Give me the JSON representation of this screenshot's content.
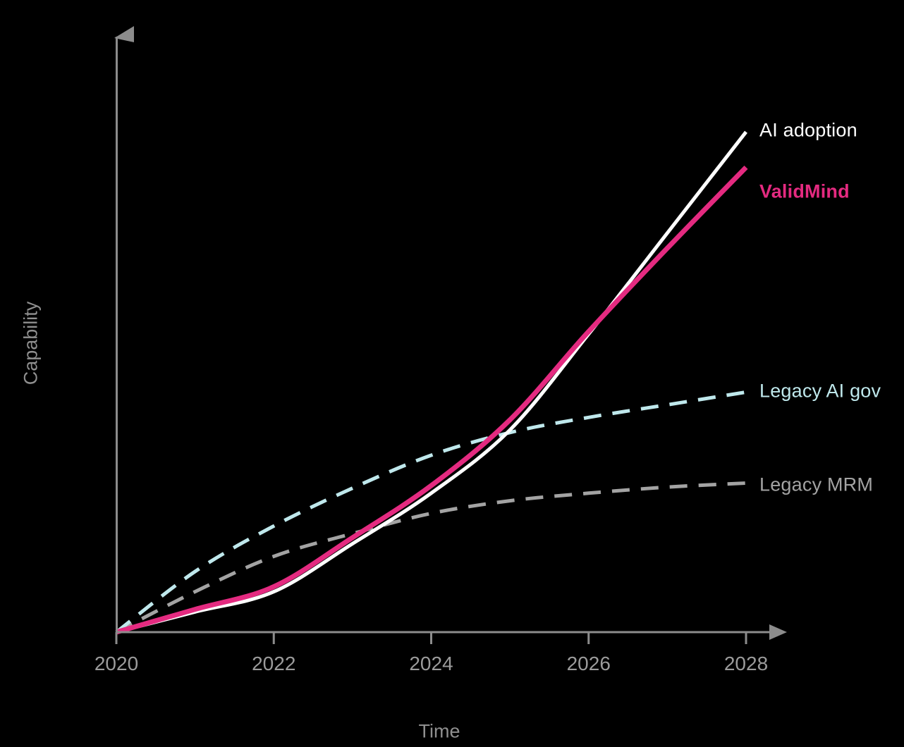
{
  "app": {
    "type": "presentation line chart on black background",
    "background_color": "#000000"
  },
  "chart_data": {
    "type": "line",
    "title": "",
    "xlabel": "Time",
    "ylabel": "Capability",
    "x": [
      2020,
      2021,
      2022,
      2023,
      2024,
      2025,
      2026,
      2027,
      2028
    ],
    "x_ticks": [
      2020,
      2022,
      2024,
      2026,
      2028
    ],
    "x_tick_labels": [
      "2020",
      "2022",
      "2024",
      "2026",
      "2028"
    ],
    "y_axis_ticks": "none (unlabeled relative capability scale)",
    "ylim": [
      0,
      118
    ],
    "grid": false,
    "legend_position": "labels at right ends of lines",
    "axis_color": "#8c8c8c",
    "tick_label_color": "#9b9b9b",
    "axis_title_color": "#8f8f8f",
    "series": [
      {
        "name": "AI adoption",
        "color": "#ffffff",
        "line_style": "solid",
        "line_width": 5,
        "values": [
          0,
          4,
          8,
          17.5,
          27.5,
          40,
          59,
          79,
          99
        ]
      },
      {
        "name": "ValidMind",
        "color": "#e42a80",
        "line_style": "solid",
        "line_width": 7,
        "label_bold": true,
        "values": [
          0,
          4.5,
          9,
          18.7,
          29,
          42,
          59.5,
          76,
          92
        ]
      },
      {
        "name": "Legacy AI gov",
        "color": "#bfe8ec",
        "line_style": "dashed",
        "line_width": 5,
        "values": [
          0,
          12,
          21,
          28.5,
          35,
          39.5,
          42.5,
          45,
          47.5
        ]
      },
      {
        "name": "Legacy MRM",
        "color": "#a3a3a3",
        "line_style": "dashed",
        "line_width": 5,
        "values": [
          0,
          8,
          15,
          19.5,
          23.5,
          26,
          27.5,
          28.7,
          29.5
        ]
      }
    ]
  }
}
